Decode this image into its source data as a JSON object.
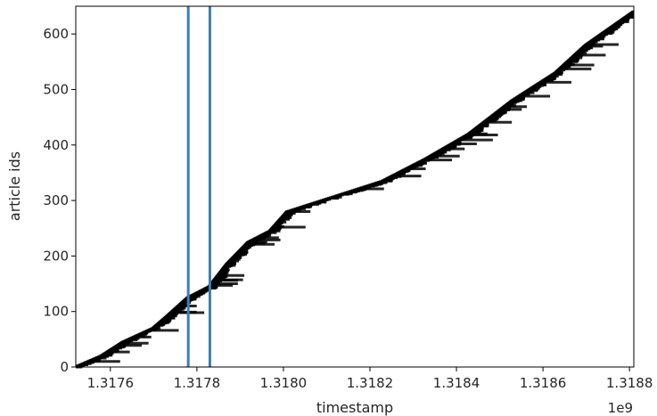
{
  "chart_data": {
    "type": "line",
    "title": "",
    "xlabel": "timestamp",
    "ylabel": "article ids",
    "x_offset_label": "1e9",
    "xlim": [
      1.31752,
      1.31881
    ],
    "ylim": [
      0,
      650
    ],
    "grid": false,
    "x_ticks": [
      1.3176,
      1.3178,
      1.318,
      1.3182,
      1.3184,
      1.3186,
      1.3188
    ],
    "x_tick_labels": [
      "1.3176",
      "1.3178",
      "1.3180",
      "1.3182",
      "1.3184",
      "1.3186",
      "1.3188"
    ],
    "y_ticks": [
      0,
      100,
      200,
      300,
      400,
      500,
      600
    ],
    "y_tick_labels": [
      "0",
      "100",
      "200",
      "300",
      "400",
      "500",
      "600"
    ],
    "vertical_lines": [
      {
        "x": 1.31778,
        "color": "#3a7fb8"
      },
      {
        "x": 1.31783,
        "color": "#3a7fb8"
      }
    ],
    "series": [
      {
        "color": "#000000",
        "style": "horizontal segments per article id (start to end timestamp)",
        "x": [
          1.31752,
          1.31758,
          1.31763,
          1.3177,
          1.31773,
          1.31778,
          1.31783,
          1.31787,
          1.31792,
          1.31797,
          1.31801,
          1.31807,
          1.31813,
          1.31823,
          1.31833,
          1.31843,
          1.31853,
          1.31863,
          1.3187,
          1.31881
        ],
        "y": [
          0,
          20,
          45,
          70,
          90,
          125,
          145,
          185,
          225,
          245,
          280,
          295,
          310,
          335,
          375,
          420,
          480,
          530,
          580,
          640
        ]
      }
    ]
  }
}
